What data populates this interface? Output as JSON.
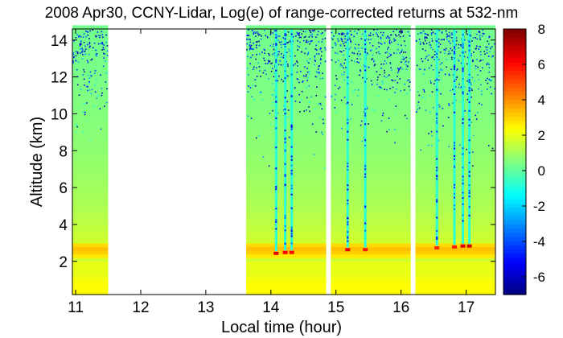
{
  "chart_data": {
    "type": "heatmap",
    "title": "2008 Apr30, CCNY-Lidar, Log(e) of range-corrected returns at 532-nm",
    "xlabel": "Local time (hour)",
    "ylabel": "Altitude (km)",
    "xlim": [
      10.95,
      17.45
    ],
    "ylim": [
      0.2,
      14.6
    ],
    "x_ticks": [
      {
        "value": 11,
        "label": "11"
      },
      {
        "value": 12,
        "label": "12"
      },
      {
        "value": 13,
        "label": "13"
      },
      {
        "value": 14,
        "label": "14"
      },
      {
        "value": 15,
        "label": "15"
      },
      {
        "value": 16,
        "label": "16"
      },
      {
        "value": 17,
        "label": "17"
      }
    ],
    "y_ticks": [
      {
        "value": 2,
        "label": "2"
      },
      {
        "value": 4,
        "label": "4"
      },
      {
        "value": 6,
        "label": "6"
      },
      {
        "value": 8,
        "label": "8"
      },
      {
        "value": 10,
        "label": "10"
      },
      {
        "value": 12,
        "label": "12"
      },
      {
        "value": 14,
        "label": "14"
      }
    ],
    "colorbar": {
      "range": [
        -7,
        8
      ],
      "ticks": [
        {
          "value": 8,
          "label": "8"
        },
        {
          "value": 6,
          "label": "6"
        },
        {
          "value": 4,
          "label": "4"
        },
        {
          "value": 2,
          "label": "2"
        },
        {
          "value": 0,
          "label": "0"
        },
        {
          "value": -2,
          "label": "-2"
        },
        {
          "value": -4,
          "label": "-4"
        },
        {
          "value": -6,
          "label": "-6"
        }
      ],
      "colormap": "jet"
    },
    "data_segments_hours": [
      [
        10.95,
        11.5
      ],
      [
        13.62,
        14.85
      ],
      [
        14.92,
        16.15
      ],
      [
        16.22,
        17.45
      ]
    ],
    "gap_color": "#e8e8e8",
    "aerosol_layer": {
      "boundary_layer_top_km": 2.0,
      "boundary_layer_value": 2.2,
      "aloft_layer_km": [
        2.3,
        3.0
      ],
      "aloft_value": 3.4
    },
    "cloud_events": [
      {
        "time": 14.08,
        "base_km": 2.4,
        "peak_value": 6.5
      },
      {
        "time": 14.22,
        "base_km": 2.45,
        "peak_value": 6.2
      },
      {
        "time": 14.32,
        "base_km": 2.45,
        "peak_value": 6.0
      },
      {
        "time": 15.18,
        "base_km": 2.6,
        "peak_value": 6.4
      },
      {
        "time": 15.45,
        "base_km": 2.6,
        "peak_value": 5.8
      },
      {
        "time": 16.55,
        "base_km": 2.7,
        "peak_value": 5.5
      },
      {
        "time": 16.82,
        "base_km": 2.75,
        "peak_value": 5.6
      },
      {
        "time": 16.95,
        "base_km": 2.8,
        "peak_value": 6.5
      },
      {
        "time": 17.05,
        "base_km": 2.8,
        "peak_value": 6.8
      }
    ],
    "background_value_free_troposphere": 0.5,
    "high_altitude_noise_value_range": [
      -7,
      2
    ]
  }
}
